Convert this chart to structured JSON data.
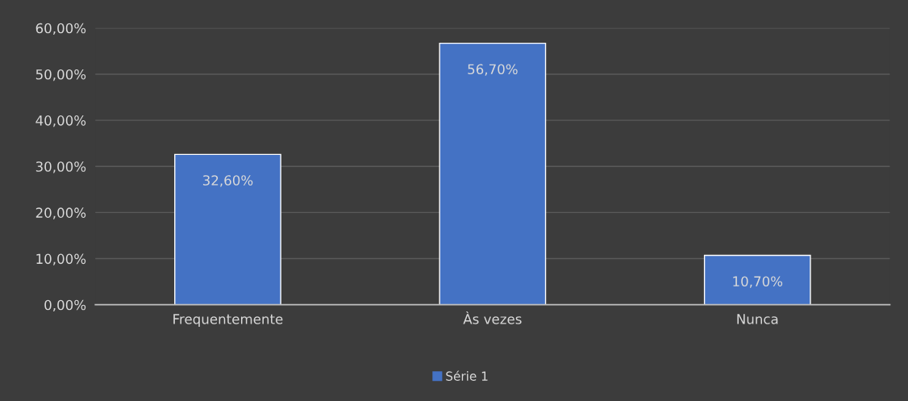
{
  "chart_data": {
    "type": "bar",
    "categories": [
      "Frequentemente",
      "Às vezes",
      "Nunca"
    ],
    "series": [
      {
        "name": "Série 1",
        "color": "#4472c4",
        "values": [
          32.6,
          56.7,
          10.7
        ],
        "value_labels": [
          "32,60%",
          "56,70%",
          "10,70%"
        ]
      }
    ],
    "ylim": [
      0,
      60
    ],
    "yticks": [
      {
        "value": 0,
        "label": "0,00%"
      },
      {
        "value": 10,
        "label": "10,00%"
      },
      {
        "value": 20,
        "label": "20,00%"
      },
      {
        "value": 30,
        "label": "30,00%"
      },
      {
        "value": 40,
        "label": "40,00%"
      },
      {
        "value": 50,
        "label": "50,00%"
      },
      {
        "value": 60,
        "label": "60,00%"
      }
    ],
    "grid": "y",
    "legend": "bottom"
  }
}
